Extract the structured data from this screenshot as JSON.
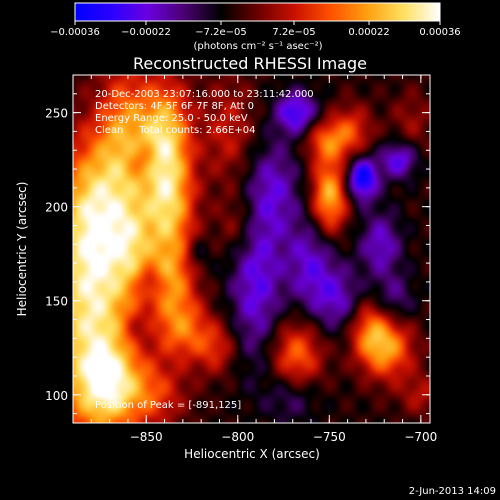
{
  "chart_data": {
    "type": "heatmap",
    "title": "Reconstructed RHESSI Image",
    "xlabel": "Heliocentric X (arcsec)",
    "ylabel": "Heliocentric Y (arcsec)",
    "xlim": [
      -890,
      -695
    ],
    "ylim": [
      85,
      270
    ],
    "xticks": [
      {
        "value": -850,
        "label": "−850"
      },
      {
        "value": -800,
        "label": "−800"
      },
      {
        "value": -750,
        "label": "−750"
      },
      {
        "value": -700,
        "label": "−700"
      }
    ],
    "yticks": [
      {
        "value": 100,
        "label": "100"
      },
      {
        "value": 150,
        "label": "150"
      },
      {
        "value": 200,
        "label": "200"
      },
      {
        "value": 250,
        "label": "250"
      }
    ],
    "colorbar": {
      "range": [
        -0.00036,
        0.00036
      ],
      "ticks": [
        {
          "value": -0.00036,
          "label": "−0.00036"
        },
        {
          "value": -0.00022,
          "label": "−0.00022"
        },
        {
          "value": -7.2e-05,
          "label": "−7.2e−05"
        },
        {
          "value": 7.2e-05,
          "label": "7.2e−05"
        },
        {
          "value": 0.00022,
          "label": "0.00022"
        },
        {
          "value": 0.00036,
          "label": "0.00036"
        }
      ],
      "unit_label": "(photons cm⁻² s⁻¹ asec⁻²)",
      "colors": [
        "#0000ff",
        "#2a00ff",
        "#6a00e0",
        "#4a0070",
        "#000000",
        "#6a0000",
        "#c81000",
        "#ff5000",
        "#ff9f10",
        "#ffe060",
        "#ffffff"
      ]
    },
    "annotations": [
      "20-Dec-2003 23:07:16.000 to 23:11:42.000",
      "Detectors: 4F 5F 6F 7F 8F, Att 0",
      "Energy Range: 25.0 - 50.0 keV",
      "Clean     Total counts: 2.66E+04"
    ],
    "peak_label": "Position of Peak = [-891,125]",
    "features": [
      {
        "x": -880,
        "y": 140,
        "v": 0.00034,
        "sx": 18,
        "sy": 45
      },
      {
        "x": -878,
        "y": 200,
        "v": 0.00024,
        "sx": 14,
        "sy": 28
      },
      {
        "x": -870,
        "y": 105,
        "v": 0.00022,
        "sx": 12,
        "sy": 15
      },
      {
        "x": -862,
        "y": 240,
        "v": 0.0002,
        "sx": 10,
        "sy": 26
      },
      {
        "x": -858,
        "y": 180,
        "v": 0.00016,
        "sx": 8,
        "sy": 18
      },
      {
        "x": -840,
        "y": 240,
        "v": 0.00028,
        "sx": 10,
        "sy": 20
      },
      {
        "x": -838,
        "y": 200,
        "v": 0.0003,
        "sx": 10,
        "sy": 22
      },
      {
        "x": -836,
        "y": 160,
        "v": 0.00018,
        "sx": 9,
        "sy": 14
      },
      {
        "x": -830,
        "y": 135,
        "v": 0.0002,
        "sx": 10,
        "sy": 12
      },
      {
        "x": -845,
        "y": 100,
        "v": 0.00014,
        "sx": 12,
        "sy": 12
      },
      {
        "x": -812,
        "y": 125,
        "v": 0.00014,
        "sx": 8,
        "sy": 10
      },
      {
        "x": -805,
        "y": 240,
        "v": 0.00012,
        "sx": 10,
        "sy": 20
      },
      {
        "x": -800,
        "y": 190,
        "v": 0.0001,
        "sx": 8,
        "sy": 12
      },
      {
        "x": -768,
        "y": 120,
        "v": 0.00022,
        "sx": 10,
        "sy": 14
      },
      {
        "x": -750,
        "y": 205,
        "v": 0.0003,
        "sx": 7,
        "sy": 14
      },
      {
        "x": -752,
        "y": 235,
        "v": 0.00018,
        "sx": 8,
        "sy": 8
      },
      {
        "x": -738,
        "y": 240,
        "v": 0.00016,
        "sx": 8,
        "sy": 10
      },
      {
        "x": -728,
        "y": 135,
        "v": 0.00018,
        "sx": 8,
        "sy": 12
      },
      {
        "x": -718,
        "y": 125,
        "v": 0.00024,
        "sx": 10,
        "sy": 12
      },
      {
        "x": -705,
        "y": 245,
        "v": 8e-05,
        "sx": 8,
        "sy": 12
      },
      {
        "x": -700,
        "y": 100,
        "v": 0.0001,
        "sx": 8,
        "sy": 8
      },
      {
        "x": -852,
        "y": 225,
        "v": -8e-05,
        "sx": 6,
        "sy": 6
      },
      {
        "x": -855,
        "y": 135,
        "v": -6e-05,
        "sx": 6,
        "sy": 8
      },
      {
        "x": -848,
        "y": 160,
        "v": -0.0001,
        "sx": 5,
        "sy": 5
      },
      {
        "x": -822,
        "y": 175,
        "v": -8e-05,
        "sx": 5,
        "sy": 6
      },
      {
        "x": -790,
        "y": 160,
        "v": -0.00018,
        "sx": 10,
        "sy": 30
      },
      {
        "x": -780,
        "y": 210,
        "v": -0.00014,
        "sx": 10,
        "sy": 18
      },
      {
        "x": -768,
        "y": 250,
        "v": -0.00022,
        "sx": 8,
        "sy": 8
      },
      {
        "x": -760,
        "y": 170,
        "v": -0.00016,
        "sx": 10,
        "sy": 18
      },
      {
        "x": -745,
        "y": 150,
        "v": -0.00014,
        "sx": 10,
        "sy": 12
      },
      {
        "x": -732,
        "y": 215,
        "v": -0.0003,
        "sx": 6,
        "sy": 8
      },
      {
        "x": -722,
        "y": 180,
        "v": -0.00016,
        "sx": 8,
        "sy": 12
      },
      {
        "x": -712,
        "y": 225,
        "v": -0.0002,
        "sx": 7,
        "sy": 7
      },
      {
        "x": -715,
        "y": 150,
        "v": -0.00012,
        "sx": 8,
        "sy": 10
      },
      {
        "x": -770,
        "y": 100,
        "v": -0.00012,
        "sx": 10,
        "sy": 10
      }
    ]
  },
  "footer": {
    "date": "2-Jun-2013 14:09"
  }
}
